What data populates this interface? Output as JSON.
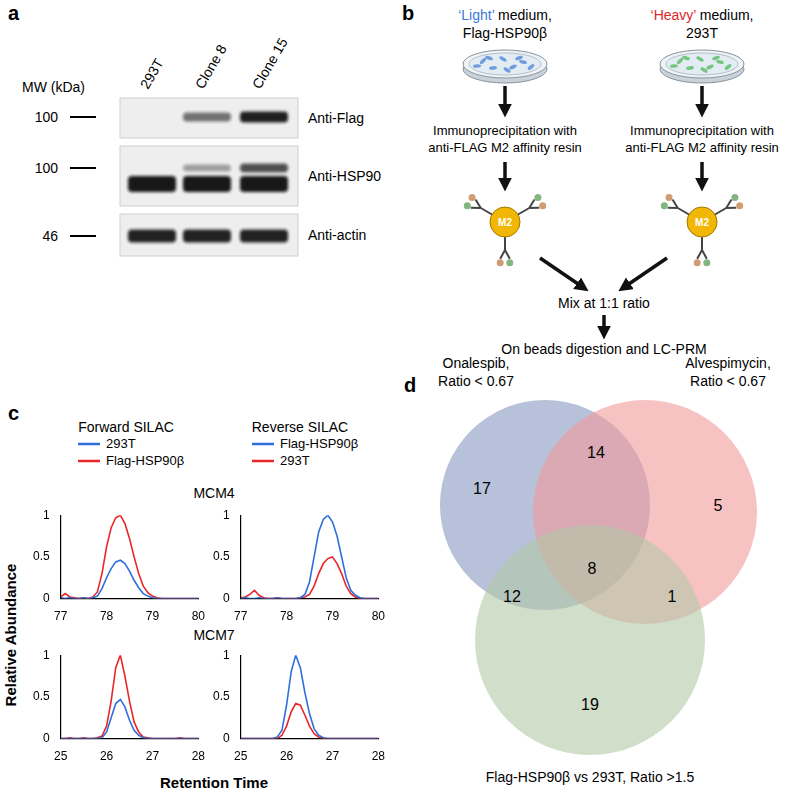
{
  "panel_a": {
    "label": "a",
    "mw_header": "MW (kDa)",
    "lanes": [
      "293T",
      "Clone 8",
      "Clone 15"
    ],
    "rows": [
      {
        "mw": 100,
        "antibody": "Anti-Flag"
      },
      {
        "mw": 100,
        "antibody": "Anti-HSP90"
      },
      {
        "mw": 46,
        "antibody": "Anti-actin"
      }
    ]
  },
  "panel_b": {
    "label": "b",
    "arms": [
      {
        "medium": {
          "text": "‘Light’",
          "color": "#3b78d8"
        },
        "medium_rest": "medium,",
        "cells": "Flag-HSP90β",
        "step": [
          "Immunoprecipitation with",
          "anti-FLAG M2 affinity resin"
        ]
      },
      {
        "medium": {
          "text": "‘Heavy’",
          "color": "#e0262b"
        },
        "medium_rest": "medium,",
        "cells": "293T",
        "step": [
          "Immunoprecipitation with",
          "anti-FLAG M2 affinity resin"
        ]
      }
    ],
    "bead": "M2",
    "mix": "Mix at 1:1 ratio",
    "final": "On beads digestion and LC-PRM"
  },
  "panel_c": {
    "label": "c",
    "columns": [
      "Forward SILAC",
      "Reverse SILAC"
    ],
    "rows": [
      "MCM4",
      "MCM7"
    ],
    "x_label": "Retention Time",
    "y_label": "Relative Abundance"
  },
  "chart_data": [
    {
      "type": "line",
      "grid": false,
      "x": [
        77.0,
        77.1,
        77.2,
        77.3,
        77.4,
        77.5,
        77.6,
        77.7,
        77.8,
        77.9,
        78.0,
        78.1,
        78.2,
        78.3,
        78.4,
        78.5,
        78.6,
        78.7,
        78.8,
        78.9,
        79.0,
        79.1,
        79.2,
        79.3,
        79.4,
        79.5,
        79.6,
        79.7,
        79.8,
        79.9,
        80.0
      ],
      "xlim": [
        77,
        80
      ],
      "xticks": [
        77,
        78,
        79,
        80
      ],
      "ylim": [
        0,
        1
      ],
      "yticks": [
        0,
        0.5,
        1
      ],
      "series": [
        {
          "name": "293T",
          "color": "#2f6fdc",
          "values": [
            0.01,
            0,
            0.01,
            0,
            0,
            0.01,
            0,
            0.01,
            0.03,
            0.12,
            0.25,
            0.36,
            0.44,
            0.46,
            0.42,
            0.33,
            0.22,
            0.13,
            0.06,
            0.03,
            0.01,
            0,
            0,
            0,
            0,
            0,
            0,
            0,
            0,
            0,
            0
          ]
        },
        {
          "name": "Flag-HSP90β",
          "color": "#e8262a",
          "values": [
            0.02,
            0.06,
            0.02,
            0.01,
            0,
            0.01,
            0,
            0.02,
            0.08,
            0.3,
            0.62,
            0.85,
            0.97,
            1,
            0.9,
            0.72,
            0.5,
            0.3,
            0.15,
            0.07,
            0.03,
            0.01,
            0,
            0,
            0,
            0,
            0,
            0,
            0,
            0,
            0
          ]
        }
      ]
    },
    {
      "type": "line",
      "grid": false,
      "x": [
        77.0,
        77.1,
        77.2,
        77.3,
        77.4,
        77.5,
        77.6,
        77.7,
        77.8,
        77.9,
        78.0,
        78.1,
        78.2,
        78.3,
        78.4,
        78.5,
        78.6,
        78.7,
        78.8,
        78.9,
        79.0,
        79.1,
        79.2,
        79.3,
        79.4,
        79.5,
        79.6,
        79.7,
        79.8,
        79.9,
        80.0
      ],
      "xlim": [
        77,
        80
      ],
      "xticks": [
        77,
        78,
        79,
        80
      ],
      "ylim": [
        0,
        1
      ],
      "yticks": [
        0,
        0.5,
        1
      ],
      "series": [
        {
          "name": "Flag-HSP90β",
          "color": "#2f6fdc",
          "values": [
            0,
            0.01,
            0,
            0,
            0.01,
            0,
            0,
            0,
            0.01,
            0,
            0,
            0,
            0,
            0.01,
            0.05,
            0.2,
            0.5,
            0.8,
            0.95,
            1,
            0.92,
            0.75,
            0.5,
            0.25,
            0.1,
            0.04,
            0.01,
            0,
            0,
            0,
            0
          ]
        },
        {
          "name": "293T",
          "color": "#e8262a",
          "values": [
            0.01,
            0.02,
            0.05,
            0.1,
            0.04,
            0.01,
            0,
            0,
            0.01,
            0,
            0,
            0,
            0,
            0.01,
            0.02,
            0.05,
            0.15,
            0.3,
            0.42,
            0.48,
            0.5,
            0.42,
            0.3,
            0.15,
            0.06,
            0.02,
            0,
            0,
            0,
            0,
            0
          ]
        }
      ]
    },
    {
      "type": "line",
      "grid": false,
      "x": [
        25.0,
        25.1,
        25.2,
        25.3,
        25.4,
        25.5,
        25.6,
        25.7,
        25.8,
        25.9,
        26.0,
        26.1,
        26.2,
        26.3,
        26.4,
        26.5,
        26.6,
        26.7,
        26.8,
        26.9,
        27.0,
        27.1,
        27.2,
        27.3,
        27.4,
        27.5,
        27.6,
        27.7,
        27.8,
        27.9,
        28.0
      ],
      "xlim": [
        25,
        28
      ],
      "xticks": [
        25,
        26,
        27,
        28
      ],
      "ylim": [
        0,
        1
      ],
      "yticks": [
        0,
        0.5,
        1
      ],
      "series": [
        {
          "name": "293T",
          "color": "#2f6fdc",
          "values": [
            0,
            0,
            0,
            0,
            0,
            0,
            0,
            0,
            0,
            0.01,
            0.08,
            0.25,
            0.42,
            0.47,
            0.38,
            0.22,
            0.1,
            0.04,
            0.01,
            0,
            0,
            0,
            0,
            0,
            0,
            0,
            0,
            0,
            0,
            0,
            0
          ]
        },
        {
          "name": "Flag-HSP90β",
          "color": "#e8262a",
          "values": [
            0,
            0,
            0.01,
            0,
            0,
            0.01,
            0,
            0,
            0.01,
            0.03,
            0.15,
            0.45,
            0.85,
            1,
            0.75,
            0.45,
            0.2,
            0.08,
            0.02,
            0.01,
            0,
            0,
            0,
            0,
            0,
            0,
            0.01,
            0,
            0,
            0,
            0
          ]
        }
      ]
    },
    {
      "type": "line",
      "grid": false,
      "x": [
        25.0,
        25.1,
        25.2,
        25.3,
        25.4,
        25.5,
        25.6,
        25.7,
        25.8,
        25.9,
        26.0,
        26.1,
        26.2,
        26.3,
        26.4,
        26.5,
        26.6,
        26.7,
        26.8,
        26.9,
        27.0,
        27.1,
        27.2,
        27.3,
        27.4,
        27.5,
        27.6,
        27.7,
        27.8,
        27.9,
        28.0
      ],
      "xlim": [
        25,
        28
      ],
      "xticks": [
        25,
        26,
        27,
        28
      ],
      "ylim": [
        0,
        1
      ],
      "yticks": [
        0,
        0.5,
        1
      ],
      "series": [
        {
          "name": "Flag-HSP90β",
          "color": "#2f6fdc",
          "values": [
            0,
            0,
            0,
            0,
            0,
            0,
            0,
            0,
            0.02,
            0.1,
            0.4,
            0.8,
            1,
            0.85,
            0.55,
            0.3,
            0.12,
            0.04,
            0.01,
            0,
            0,
            0,
            0,
            0,
            0,
            0,
            0,
            0,
            0,
            0,
            0
          ]
        },
        {
          "name": "293T",
          "color": "#e8262a",
          "values": [
            0,
            0,
            0,
            0,
            0,
            0,
            0,
            0,
            0,
            0.04,
            0.15,
            0.32,
            0.42,
            0.4,
            0.28,
            0.15,
            0.06,
            0.02,
            0,
            0,
            0,
            0,
            0,
            0,
            0,
            0,
            0,
            0,
            0,
            0,
            0
          ]
        }
      ]
    }
  ],
  "panel_d": {
    "label": "d",
    "type": "venn",
    "sets": [
      {
        "label": [
          "Onalespib,",
          "Ratio < 0.67"
        ],
        "color": "#8797bf"
      },
      {
        "label": [
          "Alvespimycin,",
          "Ratio < 0.67"
        ],
        "color": "#f29a9a"
      },
      {
        "label": [
          "Flag-HSP90β vs 293T, Ratio >1.5"
        ],
        "color": "#b2c8a6"
      }
    ],
    "regions": [
      {
        "sets": [
          0
        ],
        "value": 17
      },
      {
        "sets": [
          0,
          1
        ],
        "value": 14
      },
      {
        "sets": [
          1
        ],
        "value": 5
      },
      {
        "sets": [
          0,
          2
        ],
        "value": 12
      },
      {
        "sets": [
          0,
          1,
          2
        ],
        "value": 8
      },
      {
        "sets": [
          1,
          2
        ],
        "value": 1
      },
      {
        "sets": [
          2
        ],
        "value": 19
      }
    ]
  }
}
